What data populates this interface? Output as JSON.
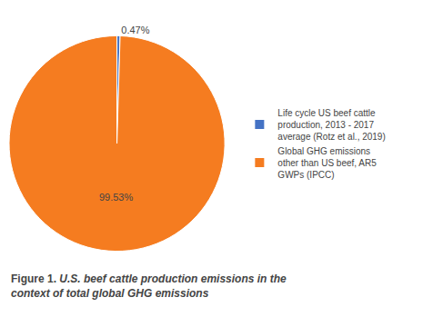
{
  "chart_data": {
    "type": "pie",
    "title": "Figure 1.",
    "subtitle": "U.S. beef cattle production emissions in the\ncontext of total global GHG emissions",
    "categories": [
      "Life cycle US beef cattle\nproduction, 2013 - 2017\naverage (Rotz et al., 2019)",
      "Global GHG emissions\nother than US beef, AR5\nGWPs (IPCC)"
    ],
    "values": [
      0.47,
      99.53
    ],
    "value_labels": [
      "0.47%",
      "99.53%"
    ],
    "colors": [
      "#4472C4",
      "#F57C20"
    ],
    "data_labels": true,
    "legend": "right"
  }
}
